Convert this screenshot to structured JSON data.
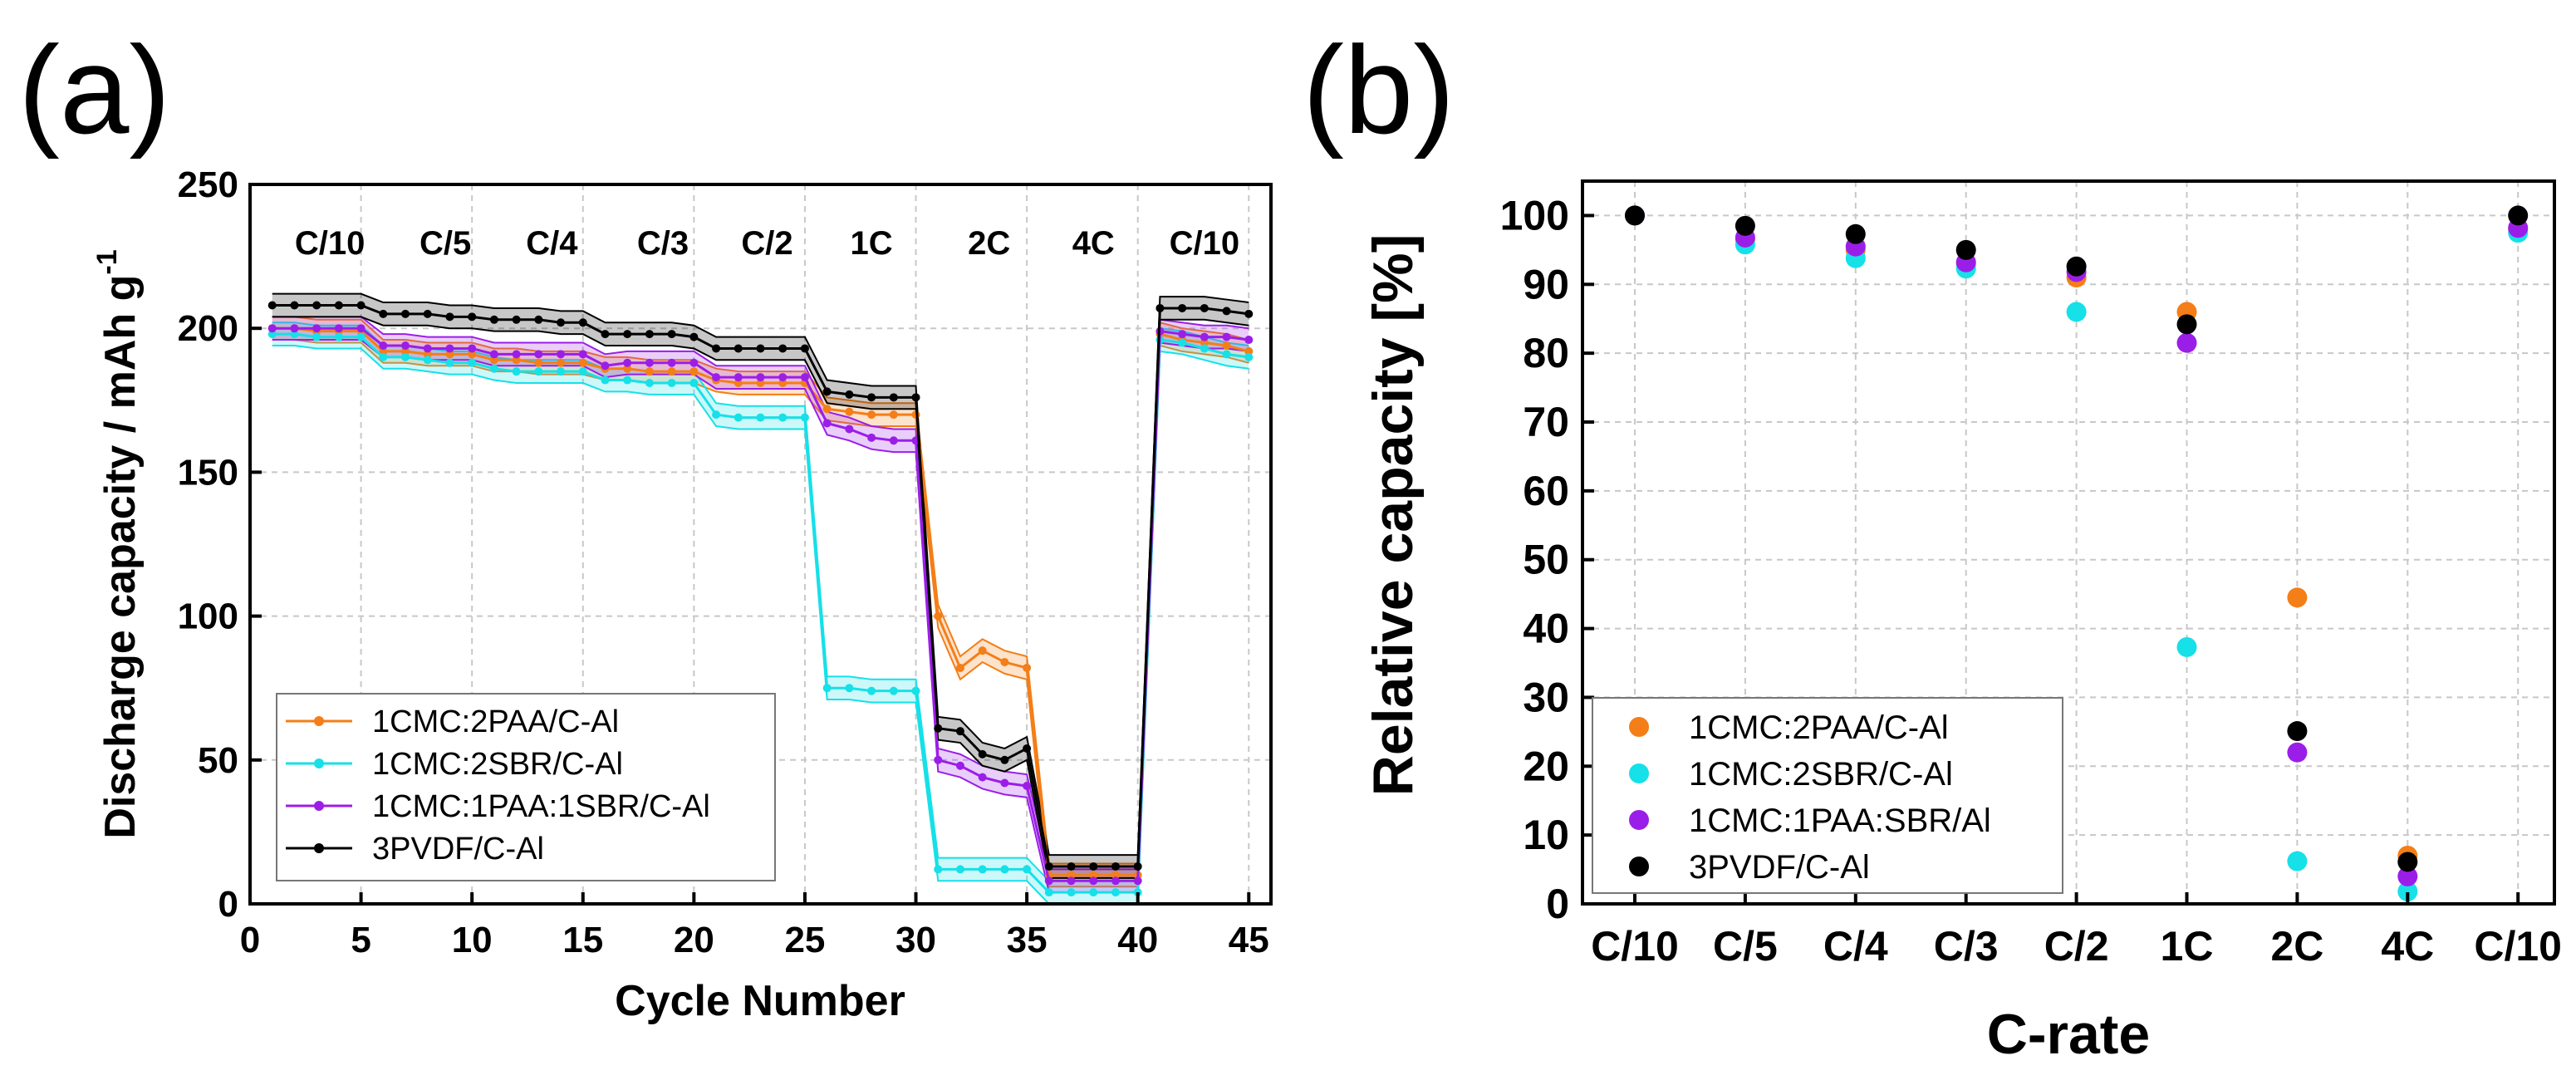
{
  "colors": {
    "1CMC:2PAA/C-Al": "#f47e17",
    "1CMC:2SBR/C-Al": "#16e0e8",
    "1CMC:1PAA:1SBR/C-Al": "#9b1ee8",
    "3PVDF/C-Al": "#000000"
  },
  "chart_data": [
    {
      "panel_label": "(a)",
      "type": "line",
      "title": "",
      "xlabel": "Cycle Number",
      "ylabel": "Discharge capacity / mAh g",
      "ylabel_sup": "-1",
      "xlim": [
        0,
        46
      ],
      "ylim": [
        0,
        250
      ],
      "xticks": [
        0,
        5,
        10,
        15,
        20,
        25,
        30,
        35,
        40,
        45
      ],
      "yticks": [
        0,
        50,
        100,
        150,
        200,
        250
      ],
      "grid": true,
      "legend_position": "bottom-left",
      "rate_labels": [
        {
          "text": "C/10",
          "x": 3.6
        },
        {
          "text": "C/5",
          "x": 8.8
        },
        {
          "text": "C/4",
          "x": 13.6
        },
        {
          "text": "C/3",
          "x": 18.6
        },
        {
          "text": "C/2",
          "x": 23.3
        },
        {
          "text": "1C",
          "x": 28.0
        },
        {
          "text": "2C",
          "x": 33.3
        },
        {
          "text": "4C",
          "x": 38.0
        },
        {
          "text": "C/10",
          "x": 43.0
        }
      ],
      "x": [
        1,
        2,
        3,
        4,
        5,
        6,
        7,
        8,
        9,
        10,
        11,
        12,
        13,
        14,
        15,
        16,
        17,
        18,
        19,
        20,
        21,
        22,
        23,
        24,
        25,
        26,
        27,
        28,
        29,
        30,
        31,
        32,
        33,
        34,
        35,
        36,
        37,
        38,
        39,
        40,
        41,
        42,
        43,
        44,
        45
      ],
      "series": [
        {
          "name": "1CMC:2PAA/C-Al",
          "color": "#f47e17",
          "values": [
            200,
            200,
            199,
            199,
            199,
            192,
            192,
            191,
            191,
            191,
            189,
            189,
            188,
            188,
            188,
            186,
            186,
            185,
            185,
            185,
            182,
            181,
            181,
            181,
            181,
            172,
            171,
            170,
            170,
            170,
            100,
            82,
            88,
            84,
            82,
            10,
            10,
            10,
            10,
            10,
            198,
            196,
            195,
            194,
            192
          ],
          "band": 4
        },
        {
          "name": "1CMC:2SBR/C-Al",
          "color": "#16e0e8",
          "values": [
            198,
            198,
            197,
            197,
            197,
            190,
            190,
            189,
            188,
            188,
            186,
            185,
            185,
            185,
            185,
            182,
            182,
            181,
            181,
            181,
            170,
            169,
            169,
            169,
            169,
            75,
            75,
            74,
            74,
            74,
            12,
            12,
            12,
            12,
            12,
            4,
            4,
            4,
            4,
            4,
            196,
            195,
            193,
            191,
            190
          ],
          "band": 4
        },
        {
          "name": "1CMC:1PAA:1SBR/C-Al",
          "color": "#9b1ee8",
          "values": [
            200,
            200,
            200,
            200,
            200,
            194,
            194,
            193,
            193,
            193,
            191,
            191,
            191,
            191,
            191,
            187,
            188,
            188,
            188,
            188,
            183,
            183,
            183,
            183,
            183,
            167,
            165,
            162,
            161,
            161,
            50,
            48,
            44,
            42,
            41,
            8,
            8,
            8,
            8,
            8,
            199,
            198,
            197,
            197,
            196
          ],
          "band": 4
        },
        {
          "name": "3PVDF/C-Al",
          "color": "#000000",
          "values": [
            208,
            208,
            208,
            208,
            208,
            205,
            205,
            205,
            204,
            204,
            203,
            203,
            203,
            202,
            202,
            198,
            198,
            198,
            198,
            197,
            193,
            193,
            193,
            193,
            193,
            178,
            177,
            176,
            176,
            176,
            61,
            60,
            52,
            50,
            54,
            13,
            13,
            13,
            13,
            13,
            207,
            207,
            207,
            206,
            205
          ],
          "band": 4
        }
      ]
    },
    {
      "panel_label": "(b)",
      "type": "scatter",
      "title": "",
      "xlabel": "C-rate",
      "ylabel": "Relative capacity [%]",
      "categories": [
        "C/10",
        "C/5",
        "C/4",
        "C/3",
        "C/2",
        "1C",
        "2C",
        "4C",
        "C/10"
      ],
      "ylim": [
        0,
        105
      ],
      "yticks": [
        0,
        10,
        20,
        30,
        40,
        50,
        60,
        70,
        80,
        90,
        100
      ],
      "grid": true,
      "legend_position": "bottom-left",
      "series": [
        {
          "name": "1CMC:2PAA/C-Al",
          "color": "#f47e17",
          "values": [
            100,
            96.5,
            95,
            93,
            91,
            86,
            44.5,
            7,
            98
          ]
        },
        {
          "name": "1CMC:2SBR/C-Al",
          "color": "#16e0e8",
          "values": [
            100,
            95.8,
            93.8,
            92.3,
            86,
            37.3,
            6.2,
            1.8,
            97.5
          ]
        },
        {
          "name": "1CMC:1PAA:SBR/Al",
          "color": "#9b1ee8",
          "values": [
            100,
            96.8,
            95.5,
            93.2,
            91.8,
            81.5,
            22,
            4,
            98.2
          ]
        },
        {
          "name": "3PVDF/C-Al",
          "color": "#000000",
          "values": [
            100,
            98.5,
            97.3,
            95,
            92.6,
            84.2,
            25.1,
            6.1,
            100
          ]
        }
      ]
    }
  ]
}
